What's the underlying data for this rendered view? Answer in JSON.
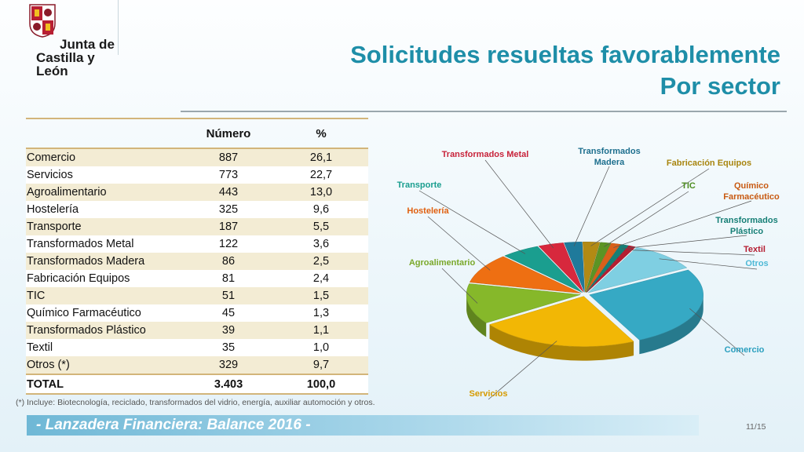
{
  "brand": {
    "line1": "Junta de",
    "line2": "Castilla y León"
  },
  "title": {
    "line1": "Solicitudes resueltas favorablemente",
    "line2": "Por sector"
  },
  "table": {
    "headers": [
      "",
      "Número",
      "%"
    ],
    "rows": [
      [
        "Comercio",
        "887",
        "26,1"
      ],
      [
        "Servicios",
        "773",
        "22,7"
      ],
      [
        "Agroalimentario",
        "443",
        "13,0"
      ],
      [
        "Hostelería",
        "325",
        "9,6"
      ],
      [
        "Transporte",
        "187",
        "5,5"
      ],
      [
        "Transformados Metal",
        "122",
        "3,6"
      ],
      [
        "Transformados Madera",
        "86",
        "2,5"
      ],
      [
        "Fabricación Equipos",
        "81",
        "2,4"
      ],
      [
        "TIC",
        "51",
        "1,5"
      ],
      [
        "Químico Farmacéutico",
        "45",
        "1,3"
      ],
      [
        "Transformados Plástico",
        "39",
        "1,1"
      ],
      [
        "Textil",
        "35",
        "1,0"
      ],
      [
        "Otros (*)",
        "329",
        "9,7"
      ]
    ],
    "total": [
      "TOTAL",
      "3.403",
      "100,0"
    ]
  },
  "footnote": "(*) Incluye: Biotecnología, reciclado, transformados del vidrio, energía, auxiliar automoción y otros.",
  "banner": "- Lanzadera Financiera: Balance 2016 -",
  "page_number": "11/15",
  "chart_data": {
    "type": "pie",
    "slices": [
      {
        "label": "Comercio",
        "value": 887,
        "color": "#36a9c4"
      },
      {
        "label": "Servicios",
        "value": 773,
        "color": "#f2b705"
      },
      {
        "label": "Agroalimentario",
        "value": 443,
        "color": "#86b82a"
      },
      {
        "label": "Hostelería",
        "value": 325,
        "color": "#ee6f12"
      },
      {
        "label": "Transporte",
        "value": 187,
        "color": "#1a9e8f"
      },
      {
        "label": "Transformados Metal",
        "value": 122,
        "color": "#d7283d"
      },
      {
        "label": "Transformados Madera",
        "value": 86,
        "color": "#1f7a9b"
      },
      {
        "label": "Fabricación Equipos",
        "value": 81,
        "color": "#b28a14"
      },
      {
        "label": "TIC",
        "value": 51,
        "color": "#5c9424"
      },
      {
        "label": "Químico Farmacéutico",
        "value": 45,
        "color": "#d9601a"
      },
      {
        "label": "Transformados Plástico",
        "value": 39,
        "color": "#167f76"
      },
      {
        "label": "Textil",
        "value": 35,
        "color": "#b51e32"
      },
      {
        "label": "Otros",
        "value": 329,
        "color": "#7fcfe2"
      }
    ],
    "label_colors": {
      "Comercio": "#2a9fbf",
      "Servicios": "#d69a00",
      "Agroalimentario": "#7aa82a",
      "Hostelería": "#e06010",
      "Transporte": "#1a9e8f",
      "Transformados Metal": "#c8233a",
      "Transformados Madera": "#1d6f8e",
      "Fabricación Equipos": "#a8850e",
      "TIC": "#4e8d20",
      "Químico Farmacéutico": "#c85a12",
      "Transformados Plástico": "#167f76",
      "Textil": "#b51e32",
      "Otros": "#4fb9d6"
    }
  }
}
